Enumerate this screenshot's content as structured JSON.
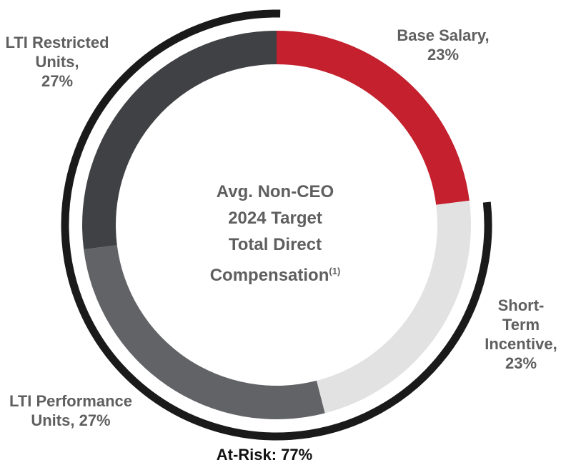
{
  "chart_data": {
    "type": "pie",
    "variant": "donut",
    "title_lines": [
      "Avg. Non-CEO",
      "2024 Target",
      "Total Direct",
      "Compensation"
    ],
    "title_superscript": "(1)",
    "slices": [
      {
        "key": "base",
        "label_lines": [
          "Base Salary,",
          "23%"
        ],
        "value": 23,
        "color": "#c4202e"
      },
      {
        "key": "sti",
        "label_lines": [
          "Short-",
          "Term",
          "Incentive,",
          "23%"
        ],
        "value": 23,
        "color": "#e2e2e3"
      },
      {
        "key": "ltip",
        "label_lines": [
          "LTI Performance",
          "Units, 27%"
        ],
        "value": 27,
        "color": "#626366"
      },
      {
        "key": "ltir",
        "label_lines": [
          "LTI Restricted",
          "Units,",
          "27%"
        ],
        "value": 27,
        "color": "#404144"
      }
    ],
    "bracket": {
      "label": "At-Risk: 77%",
      "value": 77,
      "color": "#1a1a1a"
    },
    "legend": "none"
  }
}
